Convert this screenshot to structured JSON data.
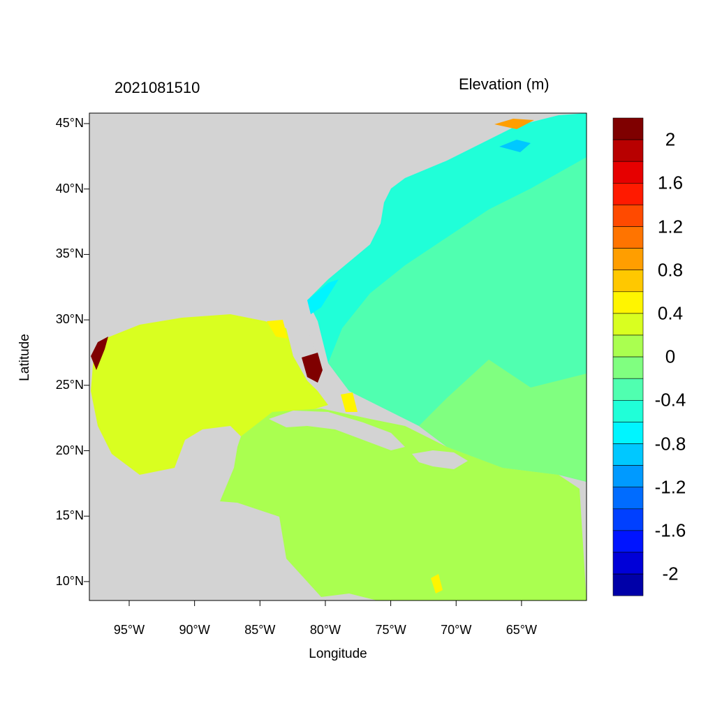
{
  "title_left": "2021081510",
  "title_right": "Elevation (m)",
  "axes": {
    "xlabel": "Longitude",
    "ylabel": "Latitude",
    "xticks": [
      "95°W",
      "90°W",
      "85°W",
      "80°W",
      "75°W",
      "70°W",
      "65°W"
    ],
    "xtick_values": [
      -95,
      -90,
      -85,
      -80,
      -75,
      -70,
      -65
    ],
    "yticks": [
      "45°N",
      "40°N",
      "35°N",
      "30°N",
      "25°N",
      "20°N",
      "15°N",
      "10°N"
    ],
    "ytick_values": [
      45,
      40,
      35,
      30,
      25,
      20,
      15,
      10
    ],
    "lon_range": [
      -98,
      -60
    ],
    "lat_range": [
      8.6,
      45.8
    ]
  },
  "colorbar": {
    "labels": [
      "2",
      "1.6",
      "1.2",
      "0.8",
      "0.4",
      "0",
      "-0.4",
      "-0.8",
      "-1.2",
      "-1.6",
      "-2"
    ],
    "range": [
      -2.2,
      2.2
    ],
    "step": 0.2,
    "colors": [
      "#7f0000",
      "#b80000",
      "#e60000",
      "#ff1a00",
      "#ff4a00",
      "#ff7400",
      "#ff9e00",
      "#ffc800",
      "#fff500",
      "#d9ff20",
      "#aaff50",
      "#80ff80",
      "#50ffb0",
      "#20ffd8",
      "#00f5ff",
      "#00c8ff",
      "#009aff",
      "#006cff",
      "#0040ff",
      "#0014ff",
      "#0000d8",
      "#0000a8"
    ]
  },
  "colors": {
    "land": "#d3d3d3",
    "gulf": "#d9ff20",
    "caribbean": "#aaff50",
    "atlantic_north": "#20ffd8",
    "atlantic_south": "#80ff80",
    "atlantic_mid": "#50ffb0",
    "surge": "#7f0000"
  }
}
